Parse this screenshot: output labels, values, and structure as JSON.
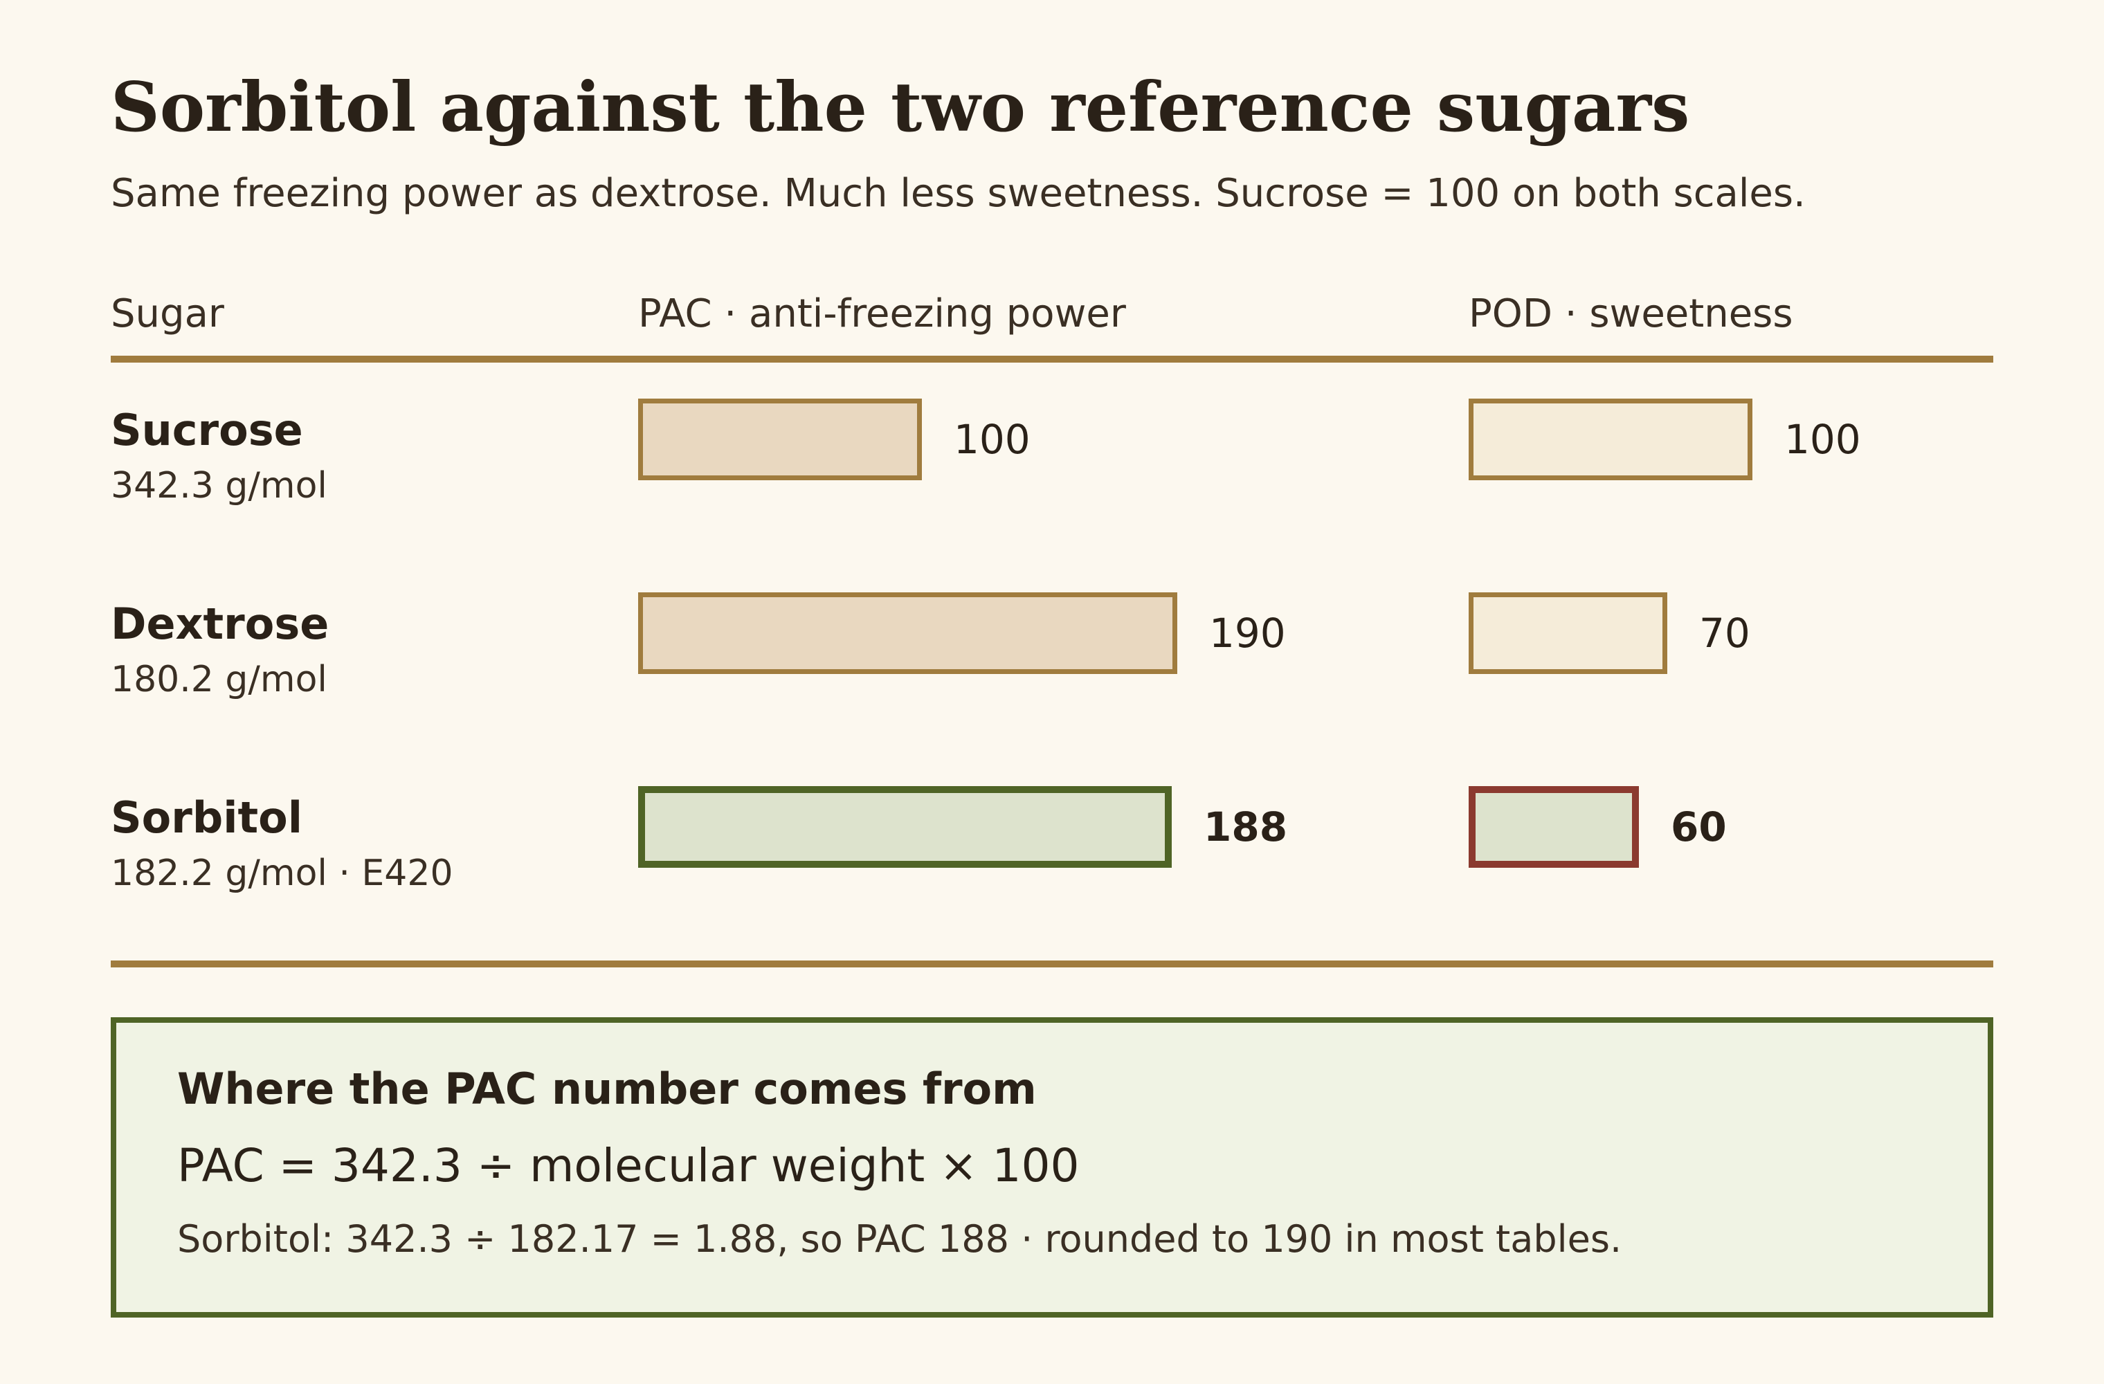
{
  "title": "Sorbitol against the two reference sugars",
  "subtitle": "Same freezing power as dextrose. Much less sweetness. Sucrose = 100 on both scales.",
  "columns": {
    "sugar": "Sugar",
    "pac": "PAC · anti-freezing power",
    "pod": "POD · sweetness"
  },
  "chart_data": {
    "type": "bar",
    "categories": [
      "Sucrose",
      "Dextrose",
      "Sorbitol"
    ],
    "category_details": [
      "342.3 g/mol",
      "180.2 g/mol",
      "182.2 g/mol · E420"
    ],
    "series": [
      {
        "name": "PAC · anti-freezing power",
        "values": [
          100,
          190,
          188
        ]
      },
      {
        "name": "POD · sweetness",
        "values": [
          100,
          70,
          60
        ]
      }
    ],
    "value_labels": [
      [
        "100",
        "190",
        "188"
      ],
      [
        "100",
        "70",
        "60"
      ]
    ],
    "reference": "Sucrose = 100 on both scales",
    "colors": {
      "reference_fill_pac": "#e9d8c0",
      "reference_fill_pod": "#f5ecd9",
      "reference_border": "#a07c3e",
      "highlight_fill": "#dde3cd",
      "highlight_pac_border": "#4f6426",
      "highlight_pod_border": "#8b3a2f"
    },
    "highlight_category": "Sorbitol"
  },
  "note": {
    "title": "Where the PAC number comes from",
    "formula": "PAC = 342.3 ÷ molecular weight × 100",
    "example": "Sorbitol: 342.3 ÷ 182.17 = 1.88, so PAC 188 · rounded to 190 in most tables."
  }
}
